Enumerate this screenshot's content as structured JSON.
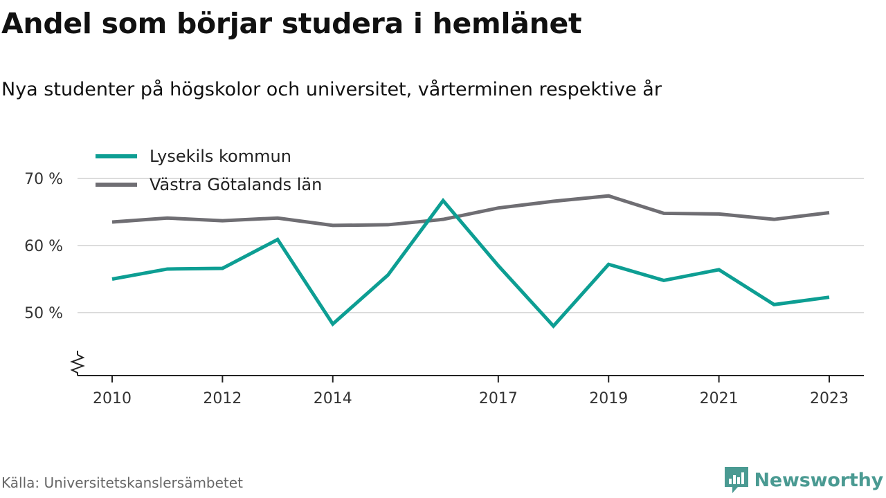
{
  "header": {
    "title": "Andel som börjar studera i hemlänet",
    "subtitle": "Nya studenter på högskolor och universitet, vårterminen respektive år"
  },
  "footer": {
    "source": "Källa: Universitetskanslersämbetet",
    "brand": "Newsworthy"
  },
  "chart_data": {
    "type": "line",
    "x": [
      2010,
      2011,
      2012,
      2013,
      2014,
      2015,
      2016,
      2017,
      2018,
      2019,
      2020,
      2021,
      2022,
      2023
    ],
    "x_tick_labels": [
      "2010",
      "2012",
      "2014",
      "2017",
      "2019",
      "2021",
      "2023"
    ],
    "y_tick_labels": [
      "50 %",
      "60 %",
      "70 %"
    ],
    "y_ticks": [
      50,
      60,
      70
    ],
    "ylim": [
      40.5,
      71
    ],
    "axis_break": true,
    "grid": true,
    "legend_position": "top-left",
    "series": [
      {
        "name": "Lysekils kommun",
        "color": "#0d9e93",
        "values": [
          55.0,
          56.5,
          56.6,
          60.9,
          48.3,
          55.6,
          66.7,
          57.0,
          48.0,
          57.2,
          54.8,
          56.4,
          51.2,
          52.3
        ]
      },
      {
        "name": "Västra Götalands län",
        "color": "#6f6e73",
        "values": [
          63.5,
          64.1,
          63.7,
          64.1,
          63.0,
          63.1,
          63.9,
          65.6,
          66.6,
          67.4,
          64.8,
          64.7,
          63.9,
          64.9
        ]
      }
    ]
  }
}
